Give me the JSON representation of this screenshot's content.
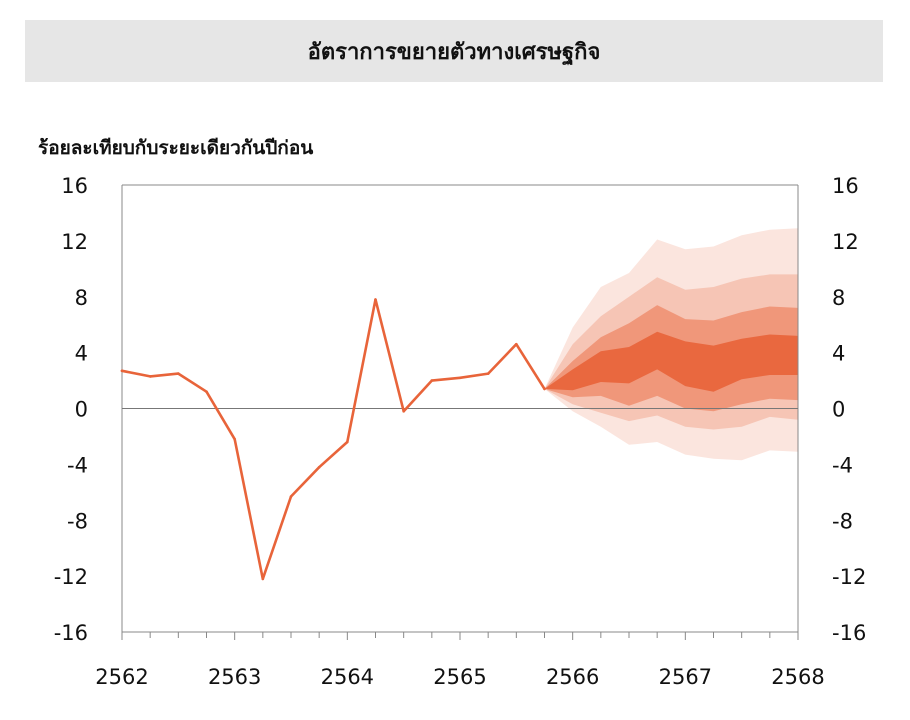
{
  "title": "อัตราการขยายตัวทางเศรษฐกิจ",
  "chart_data": {
    "type": "line",
    "title": "อัตราการขยายตัวทางเศรษฐกิจ",
    "ylabel": "ร้อยละเทียบกับระยะเดียวกันปีก่อน",
    "xlabel": "",
    "ylim": [
      -16,
      16
    ],
    "yticks": [
      16,
      12,
      8,
      4,
      0,
      -4,
      -8,
      -12,
      -16
    ],
    "xlim": [
      2562,
      2568
    ],
    "xticks": [
      "2562",
      "2563",
      "2564",
      "2565",
      "2566",
      "2567",
      "2568"
    ],
    "grid": false,
    "zero_line": true,
    "x": [
      2562.0,
      2562.25,
      2562.5,
      2562.75,
      2563.0,
      2563.25,
      2563.5,
      2563.75,
      2564.0,
      2564.25,
      2564.5,
      2564.75,
      2565.0,
      2565.25,
      2565.5,
      2565.75
    ],
    "series": [
      {
        "values": [
          2.7,
          2.3,
          2.5,
          1.2,
          -2.2,
          -12.2,
          -6.3,
          -4.2,
          -2.4,
          7.8,
          -0.2,
          2.0,
          2.2,
          2.5,
          4.6,
          1.4
        ],
        "color": "#e8643a"
      }
    ],
    "fan": {
      "x": [
        2565.75,
        2566.0,
        2566.25,
        2566.5,
        2566.75,
        2567.0,
        2567.25,
        2567.5,
        2567.75,
        2568.0
      ],
      "bands": [
        {
          "lower": [
            1.4,
            -0.2,
            -1.3,
            -2.6,
            -2.4,
            -3.3,
            -3.6,
            -3.7,
            -3.0,
            -3.1
          ],
          "upper": [
            1.4,
            5.8,
            8.7,
            9.7,
            12.1,
            11.4,
            11.6,
            12.4,
            12.8,
            12.9
          ],
          "color": "#fbe5de"
        },
        {
          "lower": [
            1.4,
            0.3,
            -0.3,
            -0.9,
            -0.5,
            -1.3,
            -1.5,
            -1.3,
            -0.6,
            -0.8
          ],
          "upper": [
            1.4,
            4.6,
            6.6,
            8.0,
            9.4,
            8.5,
            8.7,
            9.3,
            9.6,
            9.6
          ],
          "color": "#f6c5b5"
        },
        {
          "lower": [
            1.4,
            0.8,
            0.9,
            0.2,
            0.9,
            0.0,
            -0.2,
            0.3,
            0.7,
            0.6
          ],
          "upper": [
            1.4,
            3.4,
            5.1,
            6.1,
            7.4,
            6.4,
            6.3,
            6.9,
            7.3,
            7.2
          ],
          "color": "#f0977a"
        },
        {
          "lower": [
            1.4,
            1.3,
            1.9,
            1.8,
            2.8,
            1.6,
            1.2,
            2.1,
            2.4,
            2.4
          ],
          "upper": [
            1.4,
            2.8,
            4.1,
            4.4,
            5.5,
            4.8,
            4.5,
            5.0,
            5.3,
            5.2
          ],
          "color": "#e9683f"
        }
      ]
    },
    "colors": {
      "line": "#e8643a",
      "axis": "#888888",
      "zero": "#777777"
    }
  }
}
